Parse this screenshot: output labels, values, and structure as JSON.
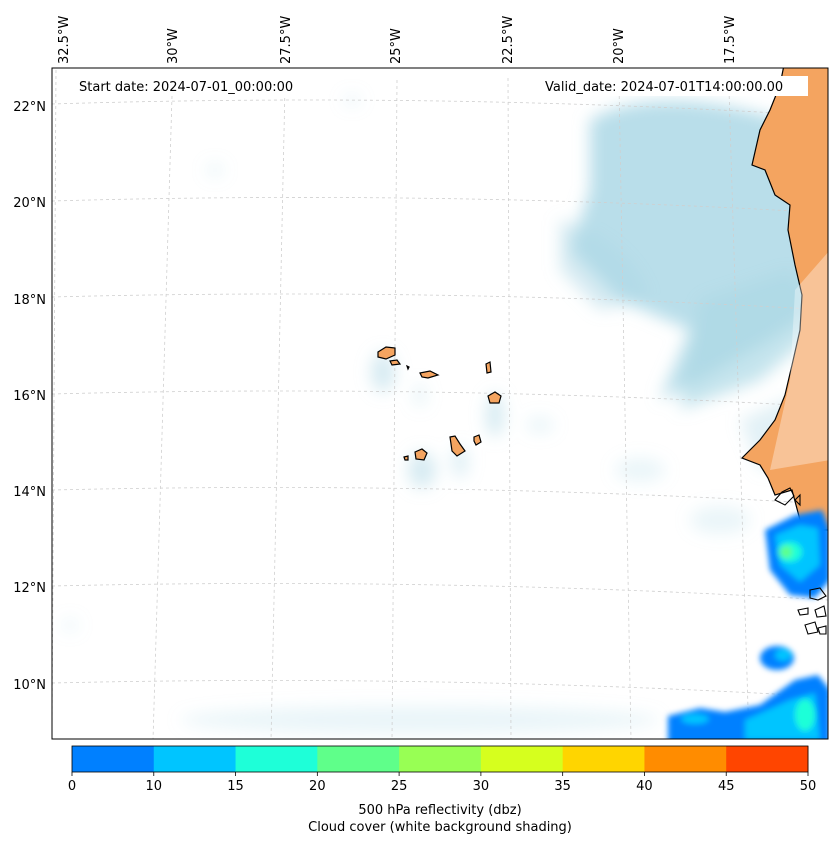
{
  "map": {
    "start_date": "Start date: 2024-07-01_00:00:00",
    "valid_date": "Valid_date: 2024-07-01T14:00:00.00",
    "lon_labels": [
      "32.5°W",
      "30°W",
      "27.5°W",
      "25°W",
      "22.5°W",
      "20°W",
      "17.5°W"
    ],
    "lat_labels": [
      "22°N",
      "20°N",
      "18°N",
      "16°N",
      "14°N",
      "12°N",
      "10°N"
    ],
    "colors": {
      "land": "#f4a460",
      "cloud": "#add8e6",
      "coast": "#000000",
      "grid": "#cfcfcf"
    }
  },
  "colorbar": {
    "ticks": [
      "0",
      "10",
      "15",
      "20",
      "25",
      "30",
      "35",
      "40",
      "45",
      "50"
    ],
    "colors": [
      "#0080ff",
      "#00c5ff",
      "#1effd8",
      "#5fff8a",
      "#98ff54",
      "#d6ff1e",
      "#ffd500",
      "#ff8c00",
      "#ff4500"
    ],
    "label_line1": "500 hPa reflectivity (dbz)",
    "label_line2": "Cloud cover (white background shading)"
  }
}
